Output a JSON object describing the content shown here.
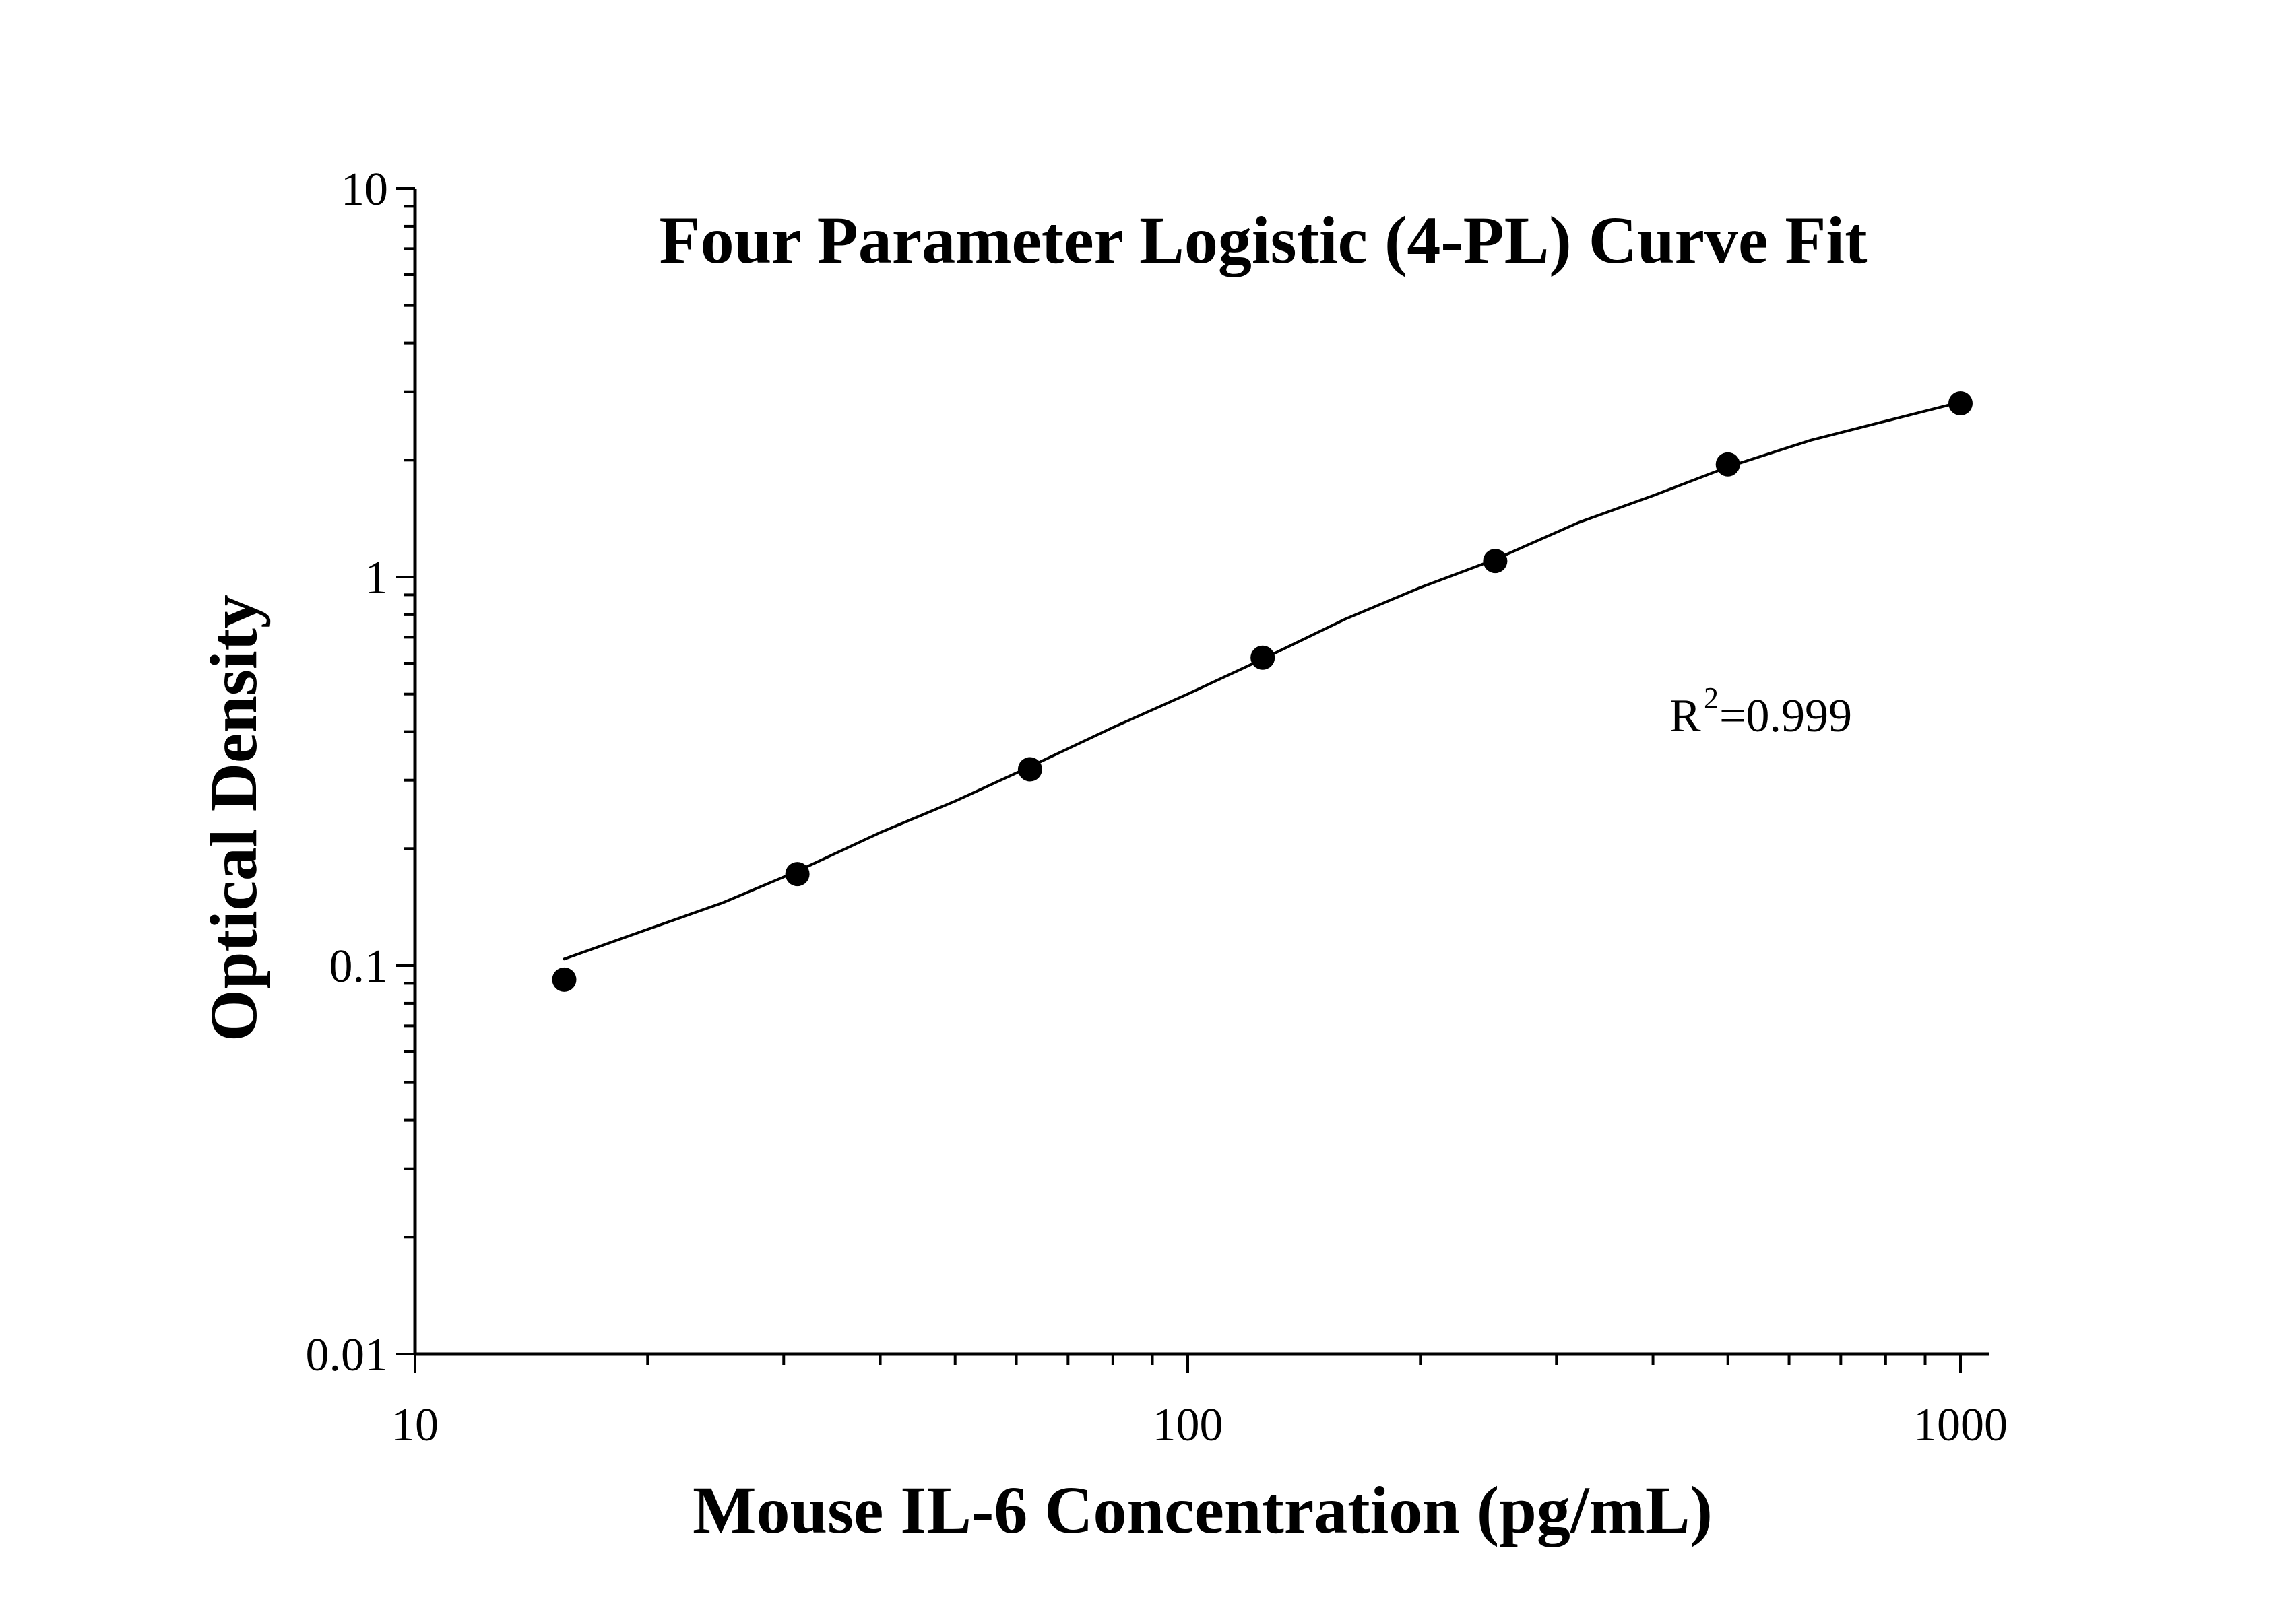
{
  "chart_data": {
    "type": "scatter",
    "title": "Four Parameter Logistic (4-PL) Curve Fit",
    "xlabel": "Mouse IL-6 Concentration (pg/mL)",
    "ylabel": "Optical Density",
    "xscale": "log",
    "yscale": "log",
    "xlim": [
      10,
      1000
    ],
    "ylim": [
      0.01,
      10
    ],
    "x_ticks": [
      "10",
      "100",
      "1000"
    ],
    "y_ticks": [
      "0.01",
      "0.1",
      "1",
      "10"
    ],
    "grid": false,
    "legend": "none",
    "series": [
      {
        "type": "scatter",
        "x": [
          15.6,
          31.25,
          62.5,
          125,
          250,
          500,
          1000
        ],
        "y": [
          0.092,
          0.172,
          0.32,
          0.62,
          1.1,
          1.95,
          2.8
        ]
      },
      {
        "type": "line",
        "x": [
          15.6,
          20,
          25,
          31.25,
          40,
          50,
          62.5,
          80,
          100,
          125,
          160,
          200,
          250,
          320,
          400,
          500,
          640,
          800,
          1000
        ],
        "y": [
          0.104,
          0.124,
          0.145,
          0.175,
          0.22,
          0.265,
          0.325,
          0.41,
          0.5,
          0.615,
          0.78,
          0.94,
          1.11,
          1.38,
          1.62,
          1.92,
          2.25,
          2.52,
          2.82
        ]
      }
    ],
    "annotations": [
      {
        "text": "R",
        "superscript": "2",
        "suffix": "=0.999"
      }
    ],
    "colors": {
      "axis": "#000000",
      "marker": "#000000",
      "curve": "#000000"
    }
  }
}
